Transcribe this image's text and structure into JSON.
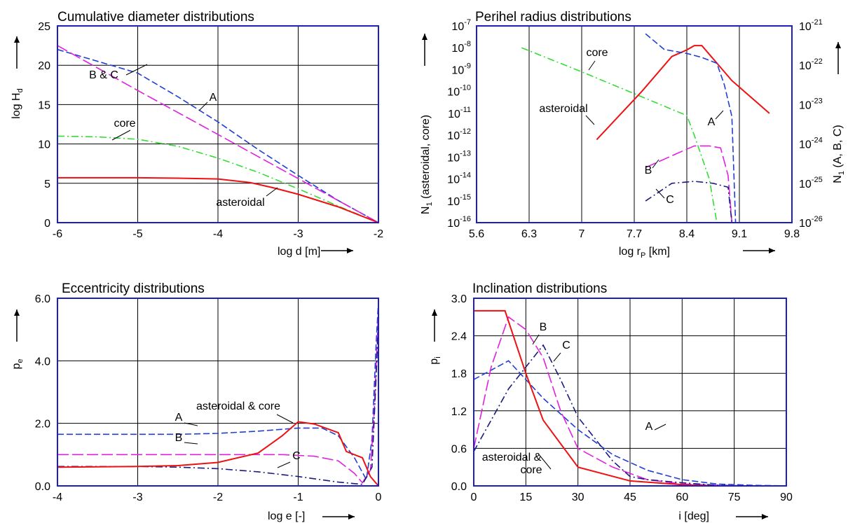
{
  "chart_data": [
    {
      "id": "p1",
      "type": "line",
      "title": "Cumulative diameter distributions",
      "xlabel": "log d   [m]",
      "ylabel": "log H",
      "ylabel_sub": "d",
      "xlim": [
        -6,
        -2
      ],
      "ylim": [
        0,
        25
      ],
      "xticks": [
        "-6",
        "-5",
        "-4",
        "-3",
        "-2"
      ],
      "yticks": [
        "0",
        "5",
        "10",
        "15",
        "20",
        "25"
      ],
      "series": [
        {
          "name": "A",
          "color": "#1f3fd6",
          "dash": "dash",
          "x": [
            -6,
            -5,
            -4.5,
            -4,
            -3.5,
            -3,
            -2.5,
            -2
          ],
          "y": [
            22,
            19,
            16,
            12.8,
            9.3,
            6,
            2.8,
            0
          ]
        },
        {
          "name": "B & C",
          "color": "#e020e0",
          "dash": "longdash",
          "x": [
            -6,
            -5,
            -4,
            -3,
            -2
          ],
          "y": [
            22.5,
            16.8,
            11.2,
            5.6,
            0
          ]
        },
        {
          "name": "core",
          "color": "#33dd33",
          "dash": "dashdot",
          "x": [
            -6,
            -5.5,
            -5,
            -4.5,
            -4,
            -3.5,
            -3,
            -2.5,
            -2
          ],
          "y": [
            11,
            10.9,
            10.6,
            9.7,
            8.2,
            6.4,
            4.3,
            2.1,
            0
          ]
        },
        {
          "name": "asteroidal",
          "color": "#ee1111",
          "dash": "solid",
          "x": [
            -6,
            -5,
            -4.5,
            -4,
            -3.6,
            -3.3,
            -3,
            -2.5,
            -2
          ],
          "y": [
            5.7,
            5.7,
            5.65,
            5.55,
            5.1,
            4.4,
            3.6,
            2.0,
            0
          ]
        }
      ],
      "annotations": [
        "A",
        "B & C",
        "core",
        "asteroidal"
      ]
    },
    {
      "id": "p2",
      "type": "line",
      "title": "Perihel radius distributions",
      "xlabel": "log r",
      "xlabel_sub": "P",
      "xlabel_unit": "[km]",
      "ylabel_left": "N",
      "ylabel_left_sub": "1",
      "ylabel_left_rest": " (asteroidal, core)",
      "ylabel_right": "N",
      "ylabel_right_sub": "1",
      "ylabel_right_rest": " (A, B, C)",
      "xlim": [
        5.6,
        9.8
      ],
      "ylim_log10": [
        -16,
        -7
      ],
      "ylim_right_log10": [
        -26,
        -21
      ],
      "xticks": [
        "5.6",
        "6.3",
        "7",
        "7.7",
        "8.4",
        "9.1",
        "9.8"
      ],
      "yticks_left": [
        {
          "b": "10",
          "e": "-7"
        },
        {
          "b": "10",
          "e": "-8"
        },
        {
          "b": "10",
          "e": "-9"
        },
        {
          "b": "10",
          "e": "-10"
        },
        {
          "b": "10",
          "e": "-11"
        },
        {
          "b": "10",
          "e": "-12"
        },
        {
          "b": "10",
          "e": "-13"
        },
        {
          "b": "10",
          "e": "-14"
        },
        {
          "b": "10",
          "e": "-15"
        },
        {
          "b": "10",
          "e": "-16"
        }
      ],
      "yticks_right": [
        {
          "b": "10",
          "e": "-21"
        },
        {
          "b": "10",
          "e": "-22"
        },
        {
          "b": "10",
          "e": "-23"
        },
        {
          "b": "10",
          "e": "-24"
        },
        {
          "b": "10",
          "e": "-25"
        },
        {
          "b": "10",
          "e": "-26"
        }
      ],
      "series": [
        {
          "name": "core",
          "axis": "left",
          "color": "#33dd33",
          "dash": "dashdot",
          "x": [
            6.2,
            7.0,
            7.7,
            8.4,
            8.5,
            8.7,
            8.8
          ],
          "log10y": [
            -8,
            -9.1,
            -10.1,
            -11.1,
            -12,
            -14,
            -16
          ]
        },
        {
          "name": "asteroidal",
          "axis": "left",
          "color": "#ee1111",
          "dash": "solid",
          "x": [
            7.2,
            7.8,
            8.2,
            8.4,
            8.5,
            8.6,
            9.0,
            9.5
          ],
          "log10y": [
            -12.2,
            -10,
            -8.4,
            -8.1,
            -7.9,
            -7.9,
            -9.5,
            -11
          ]
        },
        {
          "name": "A",
          "axis": "right",
          "color": "#1f3fd6",
          "dash": "dash",
          "x": [
            7.85,
            8.1,
            8.4,
            8.6,
            8.8,
            8.9,
            9.0,
            9.05
          ],
          "log10y": [
            -21.2,
            -21.6,
            -21.7,
            -21.8,
            -21.95,
            -22.5,
            -23.3,
            -26
          ]
        },
        {
          "name": "B",
          "axis": "right",
          "color": "#e020e0",
          "dash": "longdash",
          "x": [
            7.85,
            8.2,
            8.5,
            8.7,
            8.85,
            8.95,
            9.0
          ],
          "log10y": [
            -24.6,
            -24.3,
            -24.05,
            -24.05,
            -24.1,
            -24.8,
            -26
          ]
        },
        {
          "name": "C",
          "axis": "right",
          "color": "#1a1a80",
          "dash": "dashdot",
          "x": [
            7.85,
            8.2,
            8.5,
            8.75,
            8.95,
            9.0
          ],
          "log10y": [
            -25.45,
            -25.0,
            -24.95,
            -25.0,
            -25.1,
            -26
          ]
        }
      ],
      "annotations": [
        "core",
        "asteroidal",
        "A",
        "B",
        "C"
      ]
    },
    {
      "id": "p3",
      "type": "line",
      "title": "Eccentricity distributions",
      "xlabel": "log e   [-]",
      "ylabel": "p",
      "ylabel_sub": "e",
      "xlim": [
        -4,
        0
      ],
      "ylim": [
        0,
        6
      ],
      "xticks": [
        "-4",
        "-3",
        "-2",
        "-1",
        "0"
      ],
      "yticks": [
        "0.0",
        "2.0",
        "4.0",
        "6.0"
      ],
      "series": [
        {
          "name": "A",
          "color": "#1f3fd6",
          "dash": "dash",
          "x": [
            -4,
            -3,
            -2.5,
            -2,
            -1.5,
            -1,
            -0.7,
            -0.5,
            -0.3,
            -0.15,
            -0.08,
            -0.03,
            0
          ],
          "y": [
            1.65,
            1.65,
            1.65,
            1.68,
            1.75,
            1.85,
            1.85,
            1.6,
            0.9,
            0.2,
            1.5,
            4.5,
            5.9
          ]
        },
        {
          "name": "B",
          "color": "#e020e0",
          "dash": "longdash",
          "x": [
            -4,
            -3,
            -2,
            -1.2,
            -0.8,
            -0.5,
            -0.3,
            -0.2,
            -0.1,
            -0.05,
            0
          ],
          "y": [
            1.0,
            1.0,
            1.0,
            1.0,
            0.95,
            0.8,
            0.4,
            0.1,
            0.5,
            2.5,
            5.6
          ]
        },
        {
          "name": "C",
          "color": "#1a1a80",
          "dash": "dashdot",
          "x": [
            -4,
            -3,
            -2.5,
            -2,
            -1.5,
            -1,
            -0.5,
            -0.2,
            -0.08,
            -0.02,
            0
          ],
          "y": [
            0.62,
            0.62,
            0.6,
            0.55,
            0.45,
            0.3,
            0.12,
            0.05,
            0.6,
            4.0,
            5.4
          ]
        },
        {
          "name": "asteroidal & core",
          "color": "#ee1111",
          "dash": "solid",
          "x": [
            -4,
            -3,
            -2.5,
            -2,
            -1.5,
            -1.2,
            -1,
            -0.8,
            -0.5,
            -0.4,
            -0.2,
            -0.1,
            0
          ],
          "y": [
            0.6,
            0.62,
            0.65,
            0.75,
            1.05,
            1.6,
            2.05,
            1.98,
            1.7,
            1.1,
            0.9,
            0.3,
            0.0
          ]
        }
      ],
      "annotations": [
        "asteroidal & core",
        "A",
        "B",
        "C"
      ]
    },
    {
      "id": "p4",
      "type": "line",
      "title": "Inclination distributions",
      "xlabel": "i   [deg]",
      "ylabel": "p",
      "ylabel_sub": "i",
      "xlim": [
        0,
        90
      ],
      "ylim": [
        0,
        3
      ],
      "xticks": [
        "0",
        "15",
        "30",
        "45",
        "60",
        "75",
        "90"
      ],
      "yticks": [
        "0.0",
        "0.6",
        "1.2",
        "1.8",
        "2.4",
        "3.0"
      ],
      "series": [
        {
          "name": "A",
          "color": "#1f3fd6",
          "dash": "dash",
          "x": [
            0,
            10,
            20,
            30,
            40,
            50,
            60,
            70,
            80,
            90
          ],
          "y": [
            1.7,
            2.0,
            1.4,
            0.9,
            0.5,
            0.25,
            0.1,
            0.03,
            0.01,
            0.0
          ]
        },
        {
          "name": "B",
          "color": "#e020e0",
          "dash": "longdash",
          "x": [
            0,
            5,
            10,
            15,
            20,
            25,
            30,
            40,
            50,
            60,
            70,
            80
          ],
          "y": [
            0.6,
            1.9,
            2.7,
            2.5,
            2.05,
            1.2,
            0.6,
            0.3,
            0.1,
            0.03,
            0.01,
            0.0
          ]
        },
        {
          "name": "C",
          "color": "#1a1a80",
          "dash": "dashdot",
          "x": [
            0,
            10,
            15,
            20,
            25,
            30,
            40,
            45,
            50,
            60,
            70,
            80
          ],
          "y": [
            0.55,
            1.55,
            1.9,
            2.25,
            1.7,
            1.1,
            0.4,
            0.15,
            0.1,
            0.05,
            0.01,
            0.0
          ]
        },
        {
          "name": "asteroidal & core",
          "color": "#ee1111",
          "dash": "solid",
          "x": [
            0,
            9,
            15,
            20,
            30,
            45,
            60,
            70
          ],
          "y": [
            2.8,
            2.8,
            1.8,
            1.05,
            0.3,
            0.08,
            0.02,
            0.0
          ]
        }
      ],
      "annotations": [
        "asteroidal &",
        "core",
        "A",
        "B",
        "C"
      ]
    }
  ]
}
